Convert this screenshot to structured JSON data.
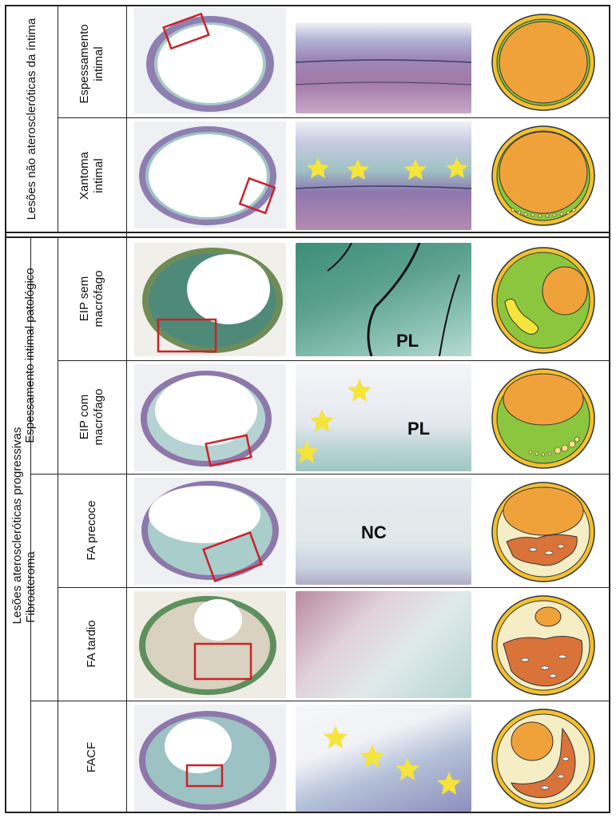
{
  "groups": {
    "non_progressive": "Lesões não ateroscleróticas da íntima",
    "progressive": "Lesões ateroscleróticas progressivas",
    "pathological_thickening": "Espessamento intimal patológico",
    "fibroatheroma": "Fibroateroma"
  },
  "rows": [
    {
      "label": "Espessamento\nintimal"
    },
    {
      "label": "Xantoma\nintimal"
    },
    {
      "label": "EIP sem\nmacrófago",
      "tag": "PL"
    },
    {
      "label": "EIP com\nmacrófago",
      "tag": "PL"
    },
    {
      "label": "FA precoce",
      "tag": "NC"
    },
    {
      "label": "FA tardio"
    },
    {
      "label": "FACF"
    }
  ],
  "colors": {
    "lumen": "#F0A23A",
    "intima_green": "#8CC63F",
    "outer_ring": "#F2C12E",
    "necrotic": "#D9733A",
    "foam": "#F6E27A",
    "star": "#F5E43B",
    "box": "#C8242B",
    "tissue_purple": "#8C6FA8",
    "tissue_teal": "#7FB5B0"
  }
}
